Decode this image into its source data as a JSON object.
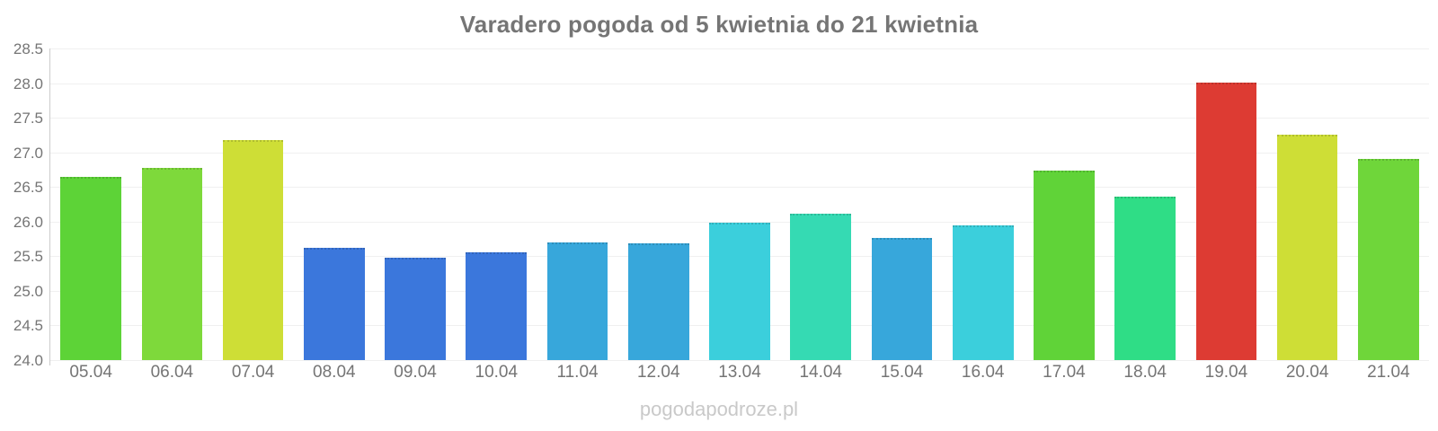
{
  "title": "Varadero pogoda od 5 kwietnia do 21 kwietnia",
  "watermark": "pogodapodroze.pl",
  "colors": {
    "title_text": "#757575",
    "tick_text": "#757575",
    "axis_line": "#cccccc",
    "gridline": "#f0f0f0",
    "watermark_text": "#c9c9c9"
  },
  "chart_data": {
    "type": "bar",
    "title": "Varadero pogoda od 5 kwietnia do 21 kwietnia",
    "xlabel": "",
    "ylabel": "",
    "ylim": [
      24.0,
      28.5
    ],
    "ytick_step": 0.5,
    "yticks": [
      "28.5",
      "28.0",
      "27.5",
      "27.0",
      "26.5",
      "26.0",
      "25.5",
      "25.0",
      "24.5",
      "24.0"
    ],
    "grid": "horizontal",
    "legend_position": "none",
    "categories": [
      "05.04",
      "06.04",
      "07.04",
      "08.04",
      "09.04",
      "10.04",
      "11.04",
      "12.04",
      "13.04",
      "14.04",
      "15.04",
      "16.04",
      "17.04",
      "18.04",
      "19.04",
      "20.04",
      "21.04"
    ],
    "values": [
      26.65,
      26.78,
      27.18,
      25.62,
      25.48,
      25.56,
      25.7,
      25.68,
      25.99,
      26.12,
      25.76,
      25.95,
      26.74,
      26.36,
      28.01,
      27.26,
      26.91
    ],
    "bar_colors": [
      "#5dd337",
      "#7ed93b",
      "#cede36",
      "#3b77dc",
      "#3b77dc",
      "#3b77dc",
      "#37a7db",
      "#37a7db",
      "#3bcfdc",
      "#35dab3",
      "#37a7db",
      "#3bcfdc",
      "#60d338",
      "#2fdd86",
      "#dd3b33",
      "#cede36",
      "#6fd63a"
    ],
    "series_meaning": "daily temperature in degrees Celsius, bar color encodes temperature"
  }
}
